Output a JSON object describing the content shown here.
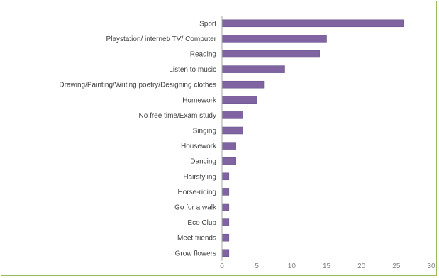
{
  "chart_data": {
    "type": "bar",
    "orientation": "horizontal",
    "categories": [
      "Sport",
      "Playstation/ internet/ TV/ Computer",
      "Reading",
      "Listen to music",
      "Drawing/Painting/Writing poetry/Designing clothes",
      "Homework",
      "No free time/Exam study",
      "Singing",
      "Housework",
      "Dancing",
      "Hairstyling",
      "Horse-riding",
      "Go for a walk",
      "Eco Club",
      "Meet friends",
      "Grow flowers"
    ],
    "values": [
      26,
      15,
      14,
      9,
      6,
      5,
      3,
      3,
      2,
      2,
      1,
      1,
      1,
      1,
      1,
      1
    ],
    "xlim": [
      0,
      30
    ],
    "xticks": [
      0,
      5,
      10,
      15,
      20,
      25,
      30
    ],
    "grid": false,
    "legend": "none",
    "colors": {
      "bar": "#8064a2",
      "bar_edge": "#5f4b86",
      "axis": "#a6a6a6",
      "frame": "#9bbb59"
    }
  }
}
